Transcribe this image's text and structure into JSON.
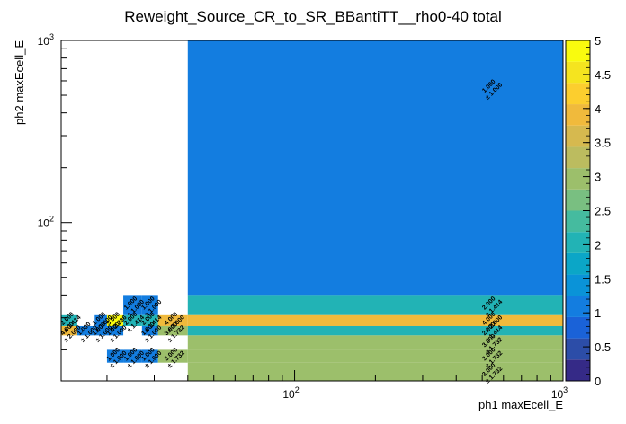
{
  "chart_data": {
    "type": "heatmap",
    "title": "Reweight_Source_CR_to_SR_BBantiTT__rho0-40 total",
    "xlabel": "ph1 maxEcell_E",
    "ylabel": "ph2 maxEcell_E",
    "x_scale": "log",
    "y_scale": "log",
    "xlim": [
      13.5,
      1000
    ],
    "ylim": [
      13.5,
      1000
    ],
    "x_tick_labels": [
      "10^2",
      "10^3"
    ],
    "y_tick_labels": [
      "10^2",
      "10^3"
    ],
    "z_range": [
      0,
      5
    ],
    "z_tick_labels": [
      "0",
      "0.5",
      "1",
      "1.5",
      "2",
      "2.5",
      "3",
      "3.5",
      "4",
      "4.5",
      "5"
    ],
    "x_edges": [
      13.5,
      15.5,
      18,
      20,
      23,
      27,
      31,
      40,
      1000
    ],
    "y_edges": [
      13.5,
      17,
      20,
      24,
      27,
      31,
      40,
      1000
    ],
    "cells": [
      {
        "xbin": 0,
        "ybin": 4,
        "value": 2,
        "label": "2.000",
        "error": "± 1.414"
      },
      {
        "xbin": 0,
        "ybin": 3,
        "value": 4,
        "label": "4.000",
        "error": "± 2.000"
      },
      {
        "xbin": 1,
        "ybin": 3,
        "value": 1,
        "label": "1.000",
        "error": "± 1.000"
      },
      {
        "xbin": 2,
        "ybin": 4,
        "value": 1,
        "label": "1.000",
        "error": "± 1.000"
      },
      {
        "xbin": 2,
        "ybin": 3,
        "value": 1,
        "label": "1.000",
        "error": "± 1.000"
      },
      {
        "xbin": 3,
        "ybin": 4,
        "value": 5,
        "label": "5.000",
        "error": "± 2.236"
      },
      {
        "xbin": 3,
        "ybin": 3,
        "value": 1,
        "label": "1.000",
        "error": "± 1.000"
      },
      {
        "xbin": 3,
        "ybin": 1,
        "value": 1,
        "label": "1.000",
        "error": "± 1.000"
      },
      {
        "xbin": 4,
        "ybin": 5,
        "value": 1,
        "label": "1.000",
        "error": "± 1.000"
      },
      {
        "xbin": 4,
        "ybin": 4,
        "value": 2,
        "label": "2.000",
        "error": "± 1.414"
      },
      {
        "xbin": 4,
        "ybin": 1,
        "value": 1,
        "label": "1.000",
        "error": "± 1.000"
      },
      {
        "xbin": 5,
        "ybin": 5,
        "value": 1,
        "label": "1.000",
        "error": "± 1.000"
      },
      {
        "xbin": 5,
        "ybin": 4,
        "value": 2,
        "label": "2.000",
        "error": "± 1.414"
      },
      {
        "xbin": 5,
        "ybin": 3,
        "value": 1,
        "label": "1.000",
        "error": "± 1.000"
      },
      {
        "xbin": 5,
        "ybin": 1,
        "value": 1,
        "label": "1.000",
        "error": "± 1.000"
      },
      {
        "xbin": 6,
        "ybin": 4,
        "value": 4,
        "label": "4.000",
        "error": "± 2.000"
      },
      {
        "xbin": 6,
        "ybin": 3,
        "value": 3,
        "label": "3.000",
        "error": "± 1.732"
      },
      {
        "xbin": 6,
        "ybin": 1,
        "value": 3,
        "label": "3.000",
        "error": "± 1.732"
      },
      {
        "xbin": 7,
        "ybin": 6,
        "value": 1,
        "label": "1.000",
        "error": "± 1.000"
      },
      {
        "xbin": 7,
        "ybin": 5,
        "value": 2,
        "label": "2.000",
        "error": "± 1.414"
      },
      {
        "xbin": 7,
        "ybin": 4,
        "value": 4,
        "label": "4.000",
        "error": "± 2.000"
      },
      {
        "xbin": 7,
        "ybin": 3,
        "value": 2,
        "label": "2.000",
        "error": "± 1.414"
      },
      {
        "xbin": 7,
        "ybin": 2,
        "value": 3,
        "label": "3.000",
        "error": "± 1.732"
      },
      {
        "xbin": 7,
        "ybin": 1,
        "value": 3,
        "label": "3.000",
        "error": "± 1.732"
      },
      {
        "xbin": 7,
        "ybin": 0,
        "value": 3,
        "label": "3.000",
        "error": "± 1.732"
      }
    ],
    "palette": [
      "#352a87",
      "#2c4da8",
      "#1a62d8",
      "#137de0",
      "#0a93d8",
      "#0ba6c7",
      "#22b3b5",
      "#45bb9f",
      "#79bf81",
      "#9cbf6b",
      "#bcbc5f",
      "#d6b94f",
      "#f0ba3c",
      "#fcce2e",
      "#f5e41f",
      "#f9fb0e"
    ]
  }
}
